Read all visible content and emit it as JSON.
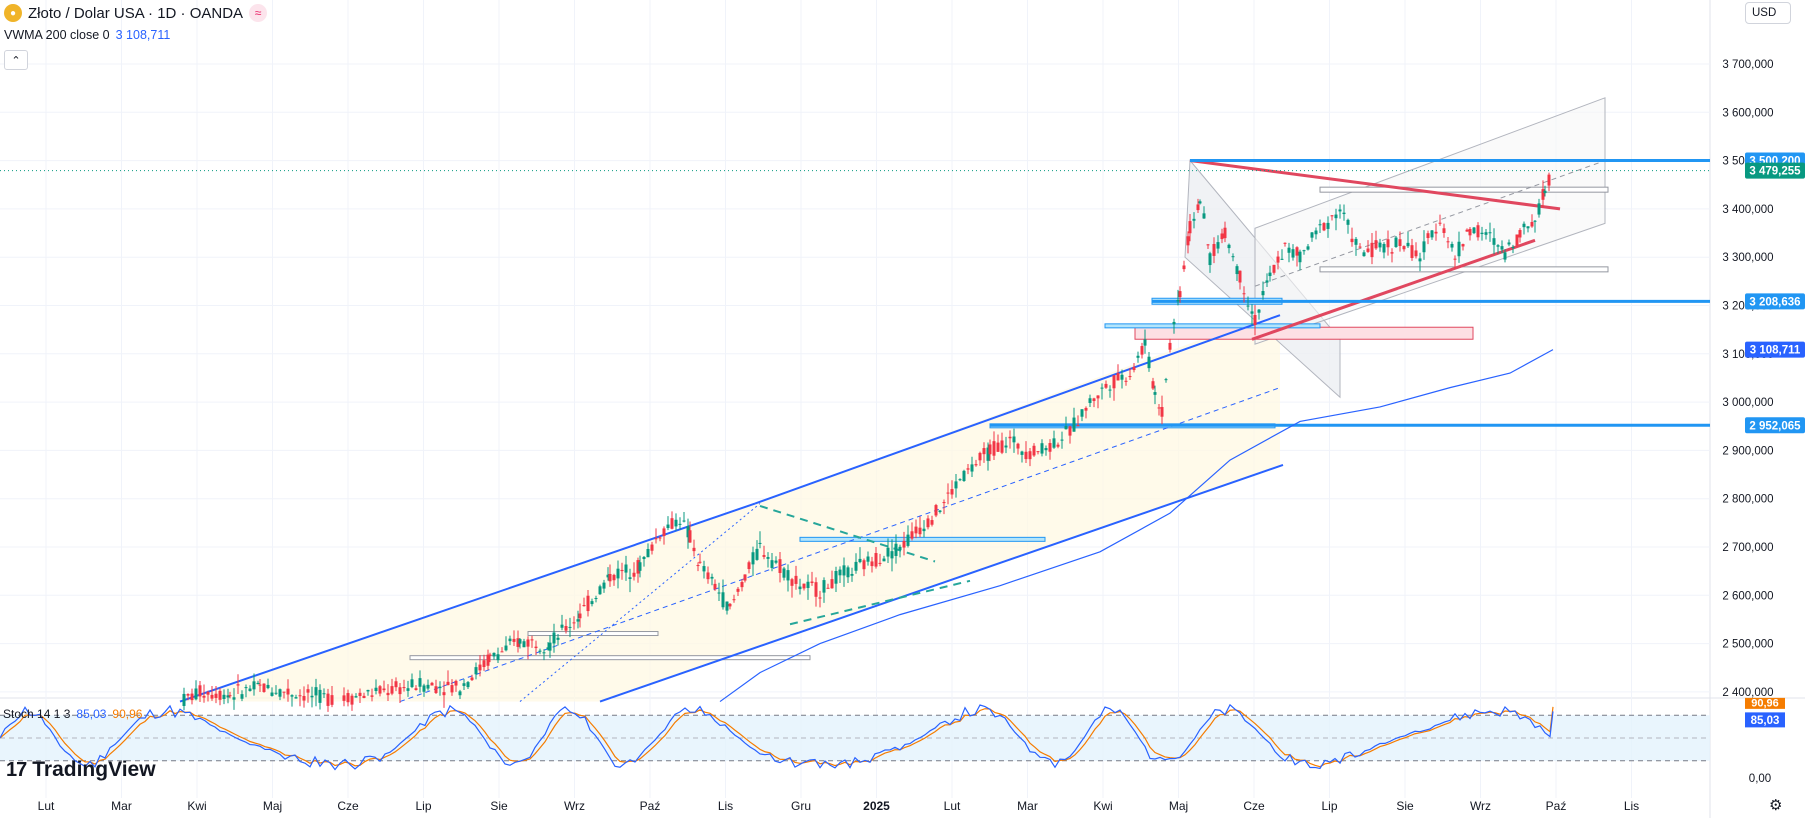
{
  "header": {
    "symbol": "Złoto / Dolar USA · 1D · OANDA",
    "indicator_name": "VWMA 200 close 0",
    "indicator_value": "3 108,711",
    "currency": "USD",
    "stoch_name": "Stoch 14 1 3",
    "stoch_k": "85,03",
    "stoch_d": "90,96",
    "brand": "TradingView"
  },
  "colors": {
    "up": "#089981",
    "down": "#f23645",
    "channel_blue": "#2962ff",
    "level_line": "#2196f3",
    "triangle_red": "#e0475f",
    "vwma": "#2962ff",
    "stoch_k": "#2962ff",
    "stoch_d": "#f57c00",
    "last_price": "#089981"
  },
  "chart_data": {
    "type": "candlestick",
    "timeframe": "1D",
    "ylim": [
      2380000,
      3760000
    ],
    "y_ticks": [
      {
        "value": 3700000,
        "label": "3 700,000"
      },
      {
        "value": 3600000,
        "label": "3 600,000"
      },
      {
        "value": 3500000,
        "label": "3 500,000"
      },
      {
        "value": 3400000,
        "label": "3 400,000"
      },
      {
        "value": 3300000,
        "label": "3 300,000"
      },
      {
        "value": 3200000,
        "label": "3 200,000"
      },
      {
        "value": 3100000,
        "label": "3 100,000"
      },
      {
        "value": 3000000,
        "label": "3 000,000"
      },
      {
        "value": 2900000,
        "label": "2 900,000"
      },
      {
        "value": 2800000,
        "label": "2 800,000"
      },
      {
        "value": 2700000,
        "label": "2 700,000"
      },
      {
        "value": 2600000,
        "label": "2 600,000"
      },
      {
        "value": 2500000,
        "label": "2 500,000"
      },
      {
        "value": 2400000,
        "label": "2 400,000"
      }
    ],
    "x_ticks": [
      "Lut",
      "Mar",
      "Kwi",
      "Maj",
      "Cze",
      "Lip",
      "Sie",
      "Wrz",
      "Paź",
      "Lis",
      "Gru",
      "2025",
      "Lut",
      "Mar",
      "Kwi",
      "Maj",
      "Cze",
      "Lip",
      "Sie",
      "Wrz",
      "Paź",
      "Lis"
    ],
    "price_labels": [
      {
        "value": 3500200,
        "label": "3 500,200",
        "kind": "level"
      },
      {
        "value": 3479255,
        "label": "3 479,255",
        "kind": "last"
      },
      {
        "value": 3208636,
        "label": "3 208,636",
        "kind": "level"
      },
      {
        "value": 3108711,
        "label": "3 108,711",
        "kind": "vwma"
      },
      {
        "value": 2952065,
        "label": "2 952,065",
        "kind": "level"
      }
    ],
    "horizontal_levels": [
      3500200,
      3208636,
      2952065
    ],
    "last_price": 3479255,
    "close_path": [
      {
        "i": 180,
        "v": 2380000
      },
      {
        "i": 200,
        "v": 2400000
      },
      {
        "i": 230,
        "v": 2395000
      },
      {
        "i": 260,
        "v": 2410000
      },
      {
        "i": 300,
        "v": 2395000
      },
      {
        "i": 340,
        "v": 2385000
      },
      {
        "i": 380,
        "v": 2400000
      },
      {
        "i": 420,
        "v": 2415000
      },
      {
        "i": 460,
        "v": 2410000
      },
      {
        "i": 490,
        "v": 2470000
      },
      {
        "i": 520,
        "v": 2505000
      },
      {
        "i": 550,
        "v": 2500000
      },
      {
        "i": 580,
        "v": 2560000
      },
      {
        "i": 610,
        "v": 2640000
      },
      {
        "i": 640,
        "v": 2660000
      },
      {
        "i": 660,
        "v": 2730000
      },
      {
        "i": 680,
        "v": 2760000
      },
      {
        "i": 690,
        "v": 2720000
      },
      {
        "i": 700,
        "v": 2660000
      },
      {
        "i": 715,
        "v": 2620000
      },
      {
        "i": 730,
        "v": 2570000
      },
      {
        "i": 745,
        "v": 2640000
      },
      {
        "i": 760,
        "v": 2700000
      },
      {
        "i": 780,
        "v": 2660000
      },
      {
        "i": 800,
        "v": 2620000
      },
      {
        "i": 820,
        "v": 2610000
      },
      {
        "i": 840,
        "v": 2640000
      },
      {
        "i": 860,
        "v": 2660000
      },
      {
        "i": 880,
        "v": 2680000
      },
      {
        "i": 900,
        "v": 2700000
      },
      {
        "i": 920,
        "v": 2740000
      },
      {
        "i": 940,
        "v": 2780000
      },
      {
        "i": 960,
        "v": 2840000
      },
      {
        "i": 990,
        "v": 2900000
      },
      {
        "i": 1010,
        "v": 2920000
      },
      {
        "i": 1030,
        "v": 2895000
      },
      {
        "i": 1050,
        "v": 2910000
      },
      {
        "i": 1070,
        "v": 2940000
      },
      {
        "i": 1090,
        "v": 3000000
      },
      {
        "i": 1110,
        "v": 3040000
      },
      {
        "i": 1130,
        "v": 3060000
      },
      {
        "i": 1145,
        "v": 3120000
      },
      {
        "i": 1155,
        "v": 3020000
      },
      {
        "i": 1162,
        "v": 2980000
      },
      {
        "i": 1170,
        "v": 3120000
      },
      {
        "i": 1180,
        "v": 3230000
      },
      {
        "i": 1190,
        "v": 3360000
      },
      {
        "i": 1200,
        "v": 3420000
      },
      {
        "i": 1210,
        "v": 3300000
      },
      {
        "i": 1225,
        "v": 3350000
      },
      {
        "i": 1240,
        "v": 3260000
      },
      {
        "i": 1255,
        "v": 3170000
      },
      {
        "i": 1270,
        "v": 3260000
      },
      {
        "i": 1285,
        "v": 3320000
      },
      {
        "i": 1300,
        "v": 3300000
      },
      {
        "i": 1320,
        "v": 3360000
      },
      {
        "i": 1340,
        "v": 3400000
      },
      {
        "i": 1360,
        "v": 3310000
      },
      {
        "i": 1380,
        "v": 3320000
      },
      {
        "i": 1400,
        "v": 3330000
      },
      {
        "i": 1420,
        "v": 3300000
      },
      {
        "i": 1440,
        "v": 3380000
      },
      {
        "i": 1455,
        "v": 3300000
      },
      {
        "i": 1470,
        "v": 3360000
      },
      {
        "i": 1490,
        "v": 3340000
      },
      {
        "i": 1505,
        "v": 3310000
      },
      {
        "i": 1520,
        "v": 3350000
      },
      {
        "i": 1535,
        "v": 3380000
      },
      {
        "i": 1545,
        "v": 3440000
      },
      {
        "i": 1553,
        "v": 3479255
      }
    ],
    "vwma_path": [
      {
        "i": 720,
        "v": 2380000
      },
      {
        "i": 760,
        "v": 2440000
      },
      {
        "i": 820,
        "v": 2500000
      },
      {
        "i": 900,
        "v": 2560000
      },
      {
        "i": 1000,
        "v": 2620000
      },
      {
        "i": 1100,
        "v": 2690000
      },
      {
        "i": 1170,
        "v": 2770000
      },
      {
        "i": 1230,
        "v": 2880000
      },
      {
        "i": 1300,
        "v": 2960000
      },
      {
        "i": 1380,
        "v": 2990000
      },
      {
        "i": 1450,
        "v": 3030000
      },
      {
        "i": 1510,
        "v": 3060000
      },
      {
        "i": 1553,
        "v": 3108711
      }
    ],
    "stoch": {
      "ylim": [
        0,
        100
      ],
      "y_ticks": [
        {
          "value": 0,
          "label": "0,00"
        }
      ],
      "k_last": 85.03,
      "d_last": 90.96,
      "upper_band": 80,
      "lower_band": 20
    },
    "title": "Złoto / Dolar USA · 1D · OANDA"
  }
}
